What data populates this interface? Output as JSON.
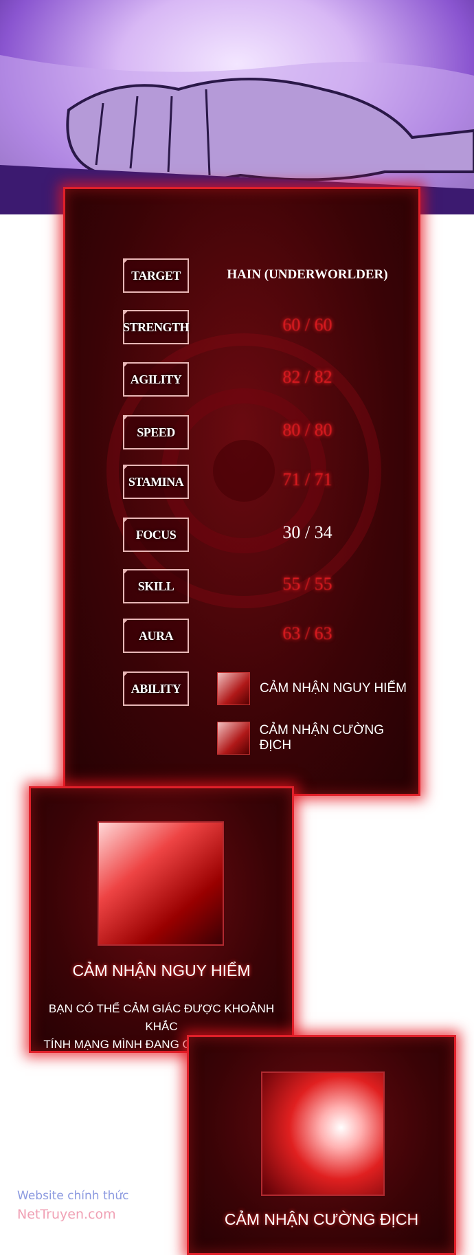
{
  "stats": {
    "rows": [
      {
        "label": "TARGET",
        "value": "HAIN (UNDERWORLDER)"
      },
      {
        "label": "STRENGTH",
        "value": "60 / 60"
      },
      {
        "label": "AGILITY",
        "value": "82 / 82"
      },
      {
        "label": "SPEED",
        "value": "80 / 80"
      },
      {
        "label": "STAMINA",
        "value": "71 / 71"
      },
      {
        "label": "FOCUS",
        "value": "30 / 34"
      },
      {
        "label": "SKILL",
        "value": "55 / 55"
      },
      {
        "label": "AURA",
        "value": "63 / 63"
      },
      {
        "label": "ABILITY",
        "value": ""
      }
    ],
    "abilities": [
      "CẢM NHẬN NGUY HIỂM",
      "CẢM NHẬN CƯỜNG ĐỊCH"
    ]
  },
  "cards": [
    {
      "title": "CẢM NHẬN NGUY HIỂM",
      "desc_line1": "BẠN CÓ THỂ CẢM GIÁC ĐƯỢC KHOẢNH KHẮC",
      "desc_line2": "TÍNH MẠNG MÌNH ĐANG GẶP NGUY HIỂM."
    },
    {
      "title": "CẢM NHẬN CƯỜNG ĐỊCH"
    }
  ],
  "watermark": {
    "line1": "Website chính thức",
    "line2": "NetTruyen.com"
  },
  "colors": {
    "panel_red": "#e0202a",
    "value_red": "#e01c22",
    "watermark_blue": "#8c9ae0",
    "watermark_pink": "#f0a0b4"
  }
}
